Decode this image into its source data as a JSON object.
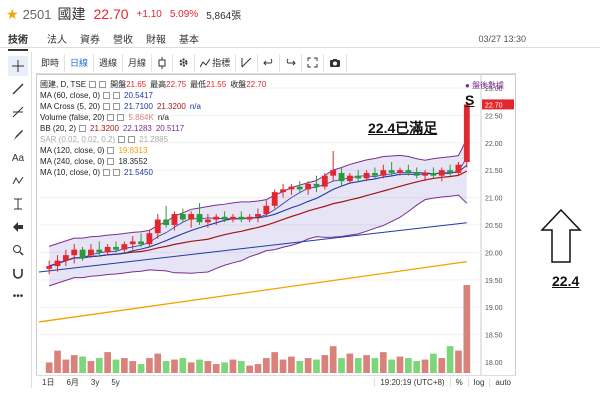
{
  "header": {
    "code": "2501",
    "name": "國建",
    "price": "22.70",
    "change": "+1.10",
    "change_pct": "5.09%",
    "volume": "5,864張"
  },
  "tabs": [
    {
      "label": "技術",
      "active": true
    },
    {
      "label": "法人",
      "active": false
    },
    {
      "label": "資券",
      "active": false
    },
    {
      "label": "營收",
      "active": false
    },
    {
      "label": "財報",
      "active": false
    },
    {
      "label": "基本",
      "active": false
    }
  ],
  "datetime": "03/27 13:30",
  "toolbar": {
    "intraday": "即時",
    "daily": "日線",
    "weekly": "週線",
    "monthly": "月線",
    "indicators": "指標"
  },
  "legend": {
    "symbol": "國建, D, TSE",
    "open_label": "開盤",
    "open": "21.65",
    "high_label": "最高",
    "high": "22.75",
    "low_label": "最低",
    "low": "21.55",
    "close_label": "收盤",
    "close": "22.70",
    "ma60_label": "MA (60, close, 0)",
    "ma60": "20.5417",
    "macross_label": "MA Cross (5, 20)",
    "macross_a": "21.7100",
    "macross_b": "21.3200",
    "macross_c": "n/a",
    "vol_label": "Volume (false, 20)",
    "vol_a": "5.864K",
    "vol_b": "n/a",
    "bb_label": "BB (20, 2)",
    "bb_a": "21.3200",
    "bb_b": "22.1283",
    "bb_c": "20.5117",
    "sar_label": "SAR (0.02, 0.02, 0.2)",
    "sar": "21.2885",
    "ma120_label": "MA (120, close, 0)",
    "ma120": "19.8313",
    "ma240_label": "MA (240, close, 0)",
    "ma240": "18.3552",
    "ma10_label": "MA (10, close, 0)",
    "ma10": "21.5450"
  },
  "annotations": {
    "note": "22.4已滿足",
    "s_mark": "S",
    "ref_label": "盤後數據",
    "price_target": "22.4"
  },
  "bottom": {
    "ranges": [
      "1日",
      "6月",
      "3y",
      "5y"
    ],
    "clock": "19:20:19 (UTC+8)",
    "pct": "%",
    "log": "log",
    "auto": "auto"
  },
  "chart_data": {
    "type": "candlestick",
    "x_ticks": [
      "18",
      "24",
      "二月",
      "15",
      "21",
      "三月",
      "8",
      "14",
      "20",
      "26",
      "30"
    ],
    "y_ticks": [
      "18.00",
      "18.50",
      "19.00",
      "19.50",
      "20.00",
      "20.50",
      "21.00",
      "21.50",
      "22.00",
      "22.50",
      "23.00"
    ],
    "ylim": [
      17.8,
      23.2
    ],
    "last_price_label": "22.70",
    "candles": [
      {
        "o": 19.7,
        "h": 19.85,
        "l": 19.6,
        "c": 19.75
      },
      {
        "o": 19.75,
        "h": 19.95,
        "l": 19.65,
        "c": 19.85
      },
      {
        "o": 19.85,
        "h": 20.05,
        "l": 19.75,
        "c": 19.95
      },
      {
        "o": 19.95,
        "h": 20.15,
        "l": 19.8,
        "c": 20.05
      },
      {
        "o": 20.05,
        "h": 20.1,
        "l": 19.85,
        "c": 19.9
      },
      {
        "o": 19.95,
        "h": 20.15,
        "l": 19.9,
        "c": 20.05
      },
      {
        "o": 20.05,
        "h": 20.2,
        "l": 19.95,
        "c": 20.0
      },
      {
        "o": 20.0,
        "h": 20.15,
        "l": 19.95,
        "c": 20.1
      },
      {
        "o": 20.1,
        "h": 20.2,
        "l": 20.0,
        "c": 20.05
      },
      {
        "o": 20.05,
        "h": 20.2,
        "l": 20.0,
        "c": 20.15
      },
      {
        "o": 20.15,
        "h": 20.3,
        "l": 20.05,
        "c": 20.2
      },
      {
        "o": 20.2,
        "h": 20.35,
        "l": 20.1,
        "c": 20.15
      },
      {
        "o": 20.15,
        "h": 20.4,
        "l": 20.1,
        "c": 20.35
      },
      {
        "o": 20.35,
        "h": 20.7,
        "l": 20.25,
        "c": 20.6
      },
      {
        "o": 20.6,
        "h": 20.85,
        "l": 20.45,
        "c": 20.5
      },
      {
        "o": 20.5,
        "h": 20.75,
        "l": 20.4,
        "c": 20.7
      },
      {
        "o": 20.7,
        "h": 20.8,
        "l": 20.55,
        "c": 20.6
      },
      {
        "o": 20.6,
        "h": 20.75,
        "l": 20.45,
        "c": 20.7
      },
      {
        "o": 20.7,
        "h": 20.9,
        "l": 20.5,
        "c": 20.55
      },
      {
        "o": 20.55,
        "h": 20.7,
        "l": 20.45,
        "c": 20.6
      },
      {
        "o": 20.6,
        "h": 20.7,
        "l": 20.5,
        "c": 20.65
      },
      {
        "o": 20.65,
        "h": 20.75,
        "l": 20.55,
        "c": 20.6
      },
      {
        "o": 20.6,
        "h": 20.7,
        "l": 20.55,
        "c": 20.65
      },
      {
        "o": 20.65,
        "h": 20.75,
        "l": 20.55,
        "c": 20.6
      },
      {
        "o": 20.6,
        "h": 20.7,
        "l": 20.55,
        "c": 20.65
      },
      {
        "o": 20.65,
        "h": 20.8,
        "l": 20.55,
        "c": 20.7
      },
      {
        "o": 20.7,
        "h": 20.95,
        "l": 20.65,
        "c": 20.85
      },
      {
        "o": 20.85,
        "h": 21.15,
        "l": 20.8,
        "c": 21.1
      },
      {
        "o": 21.1,
        "h": 21.25,
        "l": 21.0,
        "c": 21.15
      },
      {
        "o": 21.15,
        "h": 21.25,
        "l": 21.05,
        "c": 21.2
      },
      {
        "o": 21.2,
        "h": 21.3,
        "l": 21.1,
        "c": 21.15
      },
      {
        "o": 21.15,
        "h": 21.3,
        "l": 21.05,
        "c": 21.25
      },
      {
        "o": 21.25,
        "h": 21.4,
        "l": 21.1,
        "c": 21.2
      },
      {
        "o": 21.2,
        "h": 21.45,
        "l": 21.15,
        "c": 21.4
      },
      {
        "o": 21.4,
        "h": 21.85,
        "l": 21.3,
        "c": 21.5
      },
      {
        "o": 21.45,
        "h": 21.55,
        "l": 21.2,
        "c": 21.3
      },
      {
        "o": 21.3,
        "h": 21.45,
        "l": 21.25,
        "c": 21.4
      },
      {
        "o": 21.4,
        "h": 21.5,
        "l": 21.3,
        "c": 21.35
      },
      {
        "o": 21.35,
        "h": 21.5,
        "l": 21.3,
        "c": 21.45
      },
      {
        "o": 21.45,
        "h": 21.55,
        "l": 21.35,
        "c": 21.4
      },
      {
        "o": 21.4,
        "h": 21.6,
        "l": 21.35,
        "c": 21.5
      },
      {
        "o": 21.5,
        "h": 21.65,
        "l": 21.4,
        "c": 21.45
      },
      {
        "o": 21.45,
        "h": 21.55,
        "l": 21.4,
        "c": 21.5
      },
      {
        "o": 21.5,
        "h": 21.6,
        "l": 21.4,
        "c": 21.45
      },
      {
        "o": 21.45,
        "h": 21.55,
        "l": 21.35,
        "c": 21.4
      },
      {
        "o": 21.4,
        "h": 21.5,
        "l": 21.3,
        "c": 21.45
      },
      {
        "o": 21.45,
        "h": 21.55,
        "l": 21.35,
        "c": 21.4
      },
      {
        "o": 21.4,
        "h": 21.55,
        "l": 21.3,
        "c": 21.5
      },
      {
        "o": 21.5,
        "h": 21.6,
        "l": 21.4,
        "c": 21.45
      },
      {
        "o": 21.45,
        "h": 21.65,
        "l": 21.4,
        "c": 21.6
      },
      {
        "o": 21.65,
        "h": 22.75,
        "l": 21.55,
        "c": 22.7
      }
    ],
    "volumes": [
      0.7,
      1.5,
      0.9,
      1.2,
      1.1,
      0.8,
      1.0,
      1.4,
      0.9,
      1.0,
      0.8,
      0.6,
      1.0,
      1.3,
      0.8,
      0.9,
      1.0,
      0.7,
      0.9,
      0.8,
      0.6,
      0.7,
      0.9,
      0.8,
      0.5,
      0.6,
      1.0,
      1.4,
      0.9,
      1.1,
      0.8,
      1.0,
      0.9,
      1.2,
      1.8,
      1.0,
      1.3,
      1.0,
      1.2,
      1.0,
      1.4,
      0.9,
      1.1,
      1.0,
      0.8,
      0.9,
      1.3,
      1.0,
      1.8,
      1.5,
      5.9
    ],
    "colors": {
      "up": "#e0282e",
      "down": "#2b9a3a",
      "vol_up": "#d9827c",
      "vol_down": "#7cd67a"
    }
  }
}
